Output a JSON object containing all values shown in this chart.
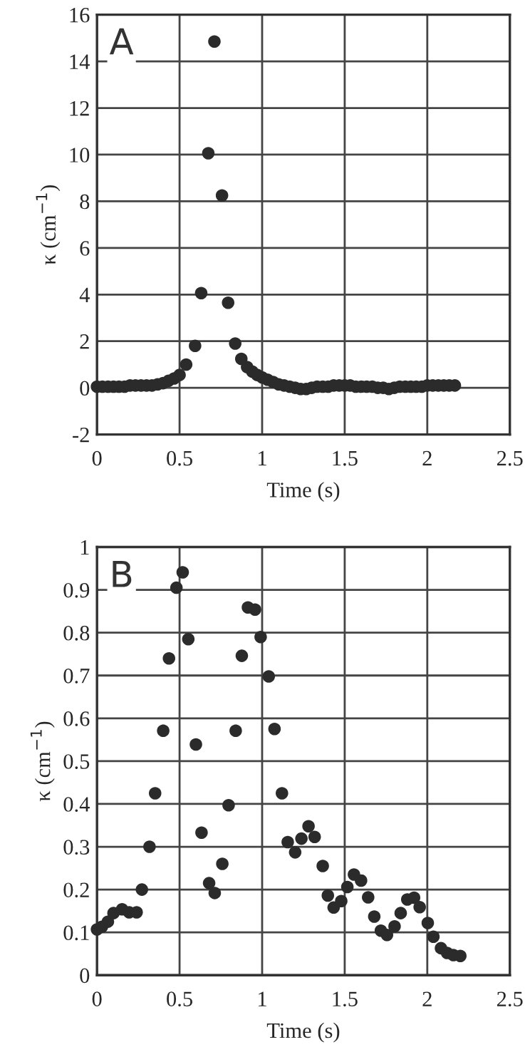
{
  "chart_data": [
    {
      "type": "scatter",
      "xlabel": "Time (s)",
      "ylabel": "κ (cm$^{−1}$)",
      "annotations": [
        "A"
      ],
      "xlim": [
        0,
        2.5
      ],
      "xticks": [
        0,
        0.5,
        1,
        1.5,
        2,
        2.5
      ],
      "ylim": [
        -2,
        16
      ],
      "yticks": [
        -2,
        0,
        2,
        4,
        6,
        8,
        10,
        12,
        14,
        16
      ],
      "grid": true,
      "marker": "circle",
      "series": [
        {
          "color": "#2b2b2b",
          "x": [
            0,
            0.033,
            0.067,
            0.1,
            0.133,
            0.167,
            0.2,
            0.233,
            0.267,
            0.3,
            0.333,
            0.367,
            0.4,
            0.433,
            0.467,
            0.5,
            0.54,
            0.594,
            0.631,
            0.674,
            0.711,
            0.757,
            0.794,
            0.837,
            0.874,
            0.909,
            0.94,
            0.97,
            1.0,
            1.033,
            1.067,
            1.1,
            1.133,
            1.167,
            1.2,
            1.233,
            1.267,
            1.3,
            1.333,
            1.367,
            1.4,
            1.433,
            1.467,
            1.5,
            1.533,
            1.567,
            1.6,
            1.633,
            1.667,
            1.7,
            1.733,
            1.767,
            1.8,
            1.833,
            1.867,
            1.9,
            1.933,
            1.967,
            2.0,
            2.033,
            2.067,
            2.1,
            2.133,
            2.167
          ],
          "values": [
            0.05,
            0.05,
            0.05,
            0.05,
            0.05,
            0.05,
            0.1,
            0.1,
            0.1,
            0.1,
            0.1,
            0.15,
            0.2,
            0.3,
            0.4,
            0.55,
            1.0,
            1.8,
            4.06,
            10.06,
            14.85,
            8.25,
            3.65,
            1.9,
            1.24,
            0.89,
            0.7,
            0.55,
            0.45,
            0.35,
            0.25,
            0.15,
            0.1,
            0.05,
            0,
            -0.05,
            -0.05,
            0,
            0.05,
            0.05,
            0.05,
            0.1,
            0.1,
            0.1,
            0.1,
            0.05,
            0.05,
            0.05,
            0.05,
            0,
            0,
            -0.05,
            0,
            0.05,
            0.05,
            0.05,
            0.05,
            0.05,
            0.1,
            0.1,
            0.1,
            0.1,
            0.1,
            0.1
          ]
        }
      ]
    },
    {
      "type": "scatter",
      "xlabel": "Time (s)",
      "ylabel": "κ (cm$^{−1}$)",
      "annotations": [
        "B"
      ],
      "xlim": [
        0,
        2.5
      ],
      "xticks": [
        0,
        0.5,
        1,
        1.5,
        2,
        2.5
      ],
      "ylim": [
        0,
        1
      ],
      "yticks": [
        0,
        0.1,
        0.2,
        0.3,
        0.4,
        0.5,
        0.6,
        0.7,
        0.8,
        0.9,
        1
      ],
      "grid": true,
      "marker": "circle",
      "series": [
        {
          "color": "#2b2b2b",
          "x": [
            0.0,
            0.03,
            0.066,
            0.1,
            0.152,
            0.195,
            0.24,
            0.272,
            0.318,
            0.352,
            0.401,
            0.436,
            0.481,
            0.519,
            0.553,
            0.599,
            0.633,
            0.679,
            0.713,
            0.759,
            0.797,
            0.84,
            0.877,
            0.914,
            0.957,
            0.991,
            1.04,
            1.075,
            1.12,
            1.155,
            1.2,
            1.238,
            1.281,
            1.318,
            1.367,
            1.398,
            1.433,
            1.479,
            1.516,
            1.556,
            1.599,
            1.642,
            1.679,
            1.719,
            1.756,
            1.802,
            1.839,
            1.879,
            1.92,
            1.954,
            2.003,
            2.037,
            2.083,
            2.12,
            2.158,
            2.2
          ],
          "values": [
            0.107,
            0.113,
            0.125,
            0.145,
            0.154,
            0.147,
            0.147,
            0.2,
            0.3,
            0.425,
            0.571,
            0.74,
            0.905,
            0.941,
            0.785,
            0.539,
            0.333,
            0.215,
            0.192,
            0.26,
            0.397,
            0.571,
            0.746,
            0.859,
            0.854,
            0.79,
            0.698,
            0.575,
            0.425,
            0.311,
            0.287,
            0.319,
            0.348,
            0.323,
            0.255,
            0.186,
            0.158,
            0.173,
            0.206,
            0.235,
            0.221,
            0.182,
            0.137,
            0.104,
            0.094,
            0.114,
            0.145,
            0.177,
            0.181,
            0.159,
            0.122,
            0.09,
            0.063,
            0.052,
            0.047,
            0.045
          ]
        }
      ]
    }
  ]
}
